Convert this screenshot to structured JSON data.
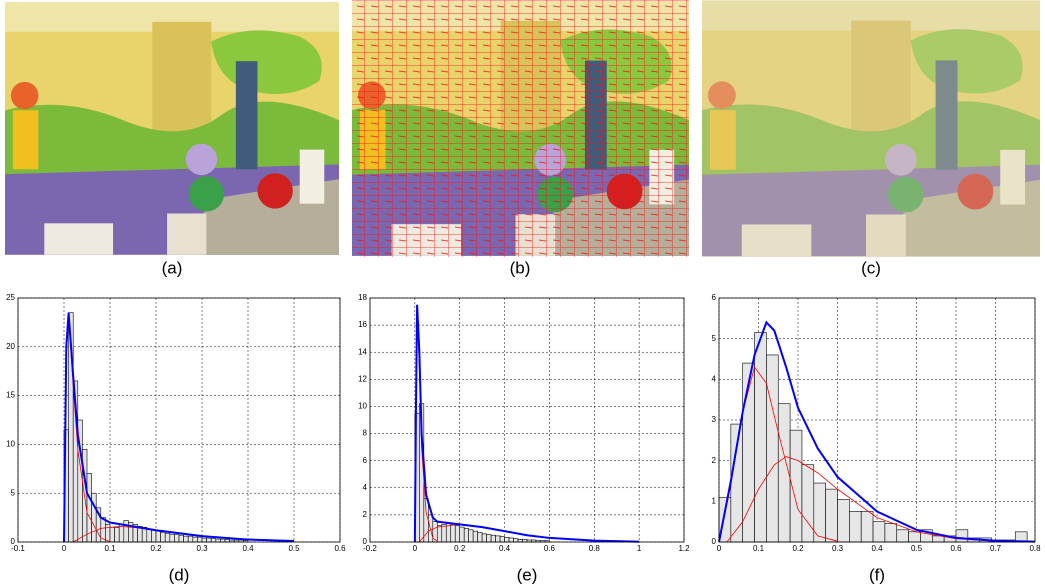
{
  "images": [
    {
      "caption": "(a)"
    },
    {
      "caption": "(b)"
    },
    {
      "caption": "(c)"
    }
  ],
  "chart_data": [
    {
      "type": "histogram",
      "caption": "(d)",
      "color": "#e6e6e6",
      "grid": true,
      "xlim": [
        -0.1,
        0.6
      ],
      "xticks": [
        -0.1,
        0,
        0.1,
        0.2,
        0.3,
        0.4,
        0.5,
        0.6
      ],
      "ylim": [
        0,
        25
      ],
      "yticks": [
        0,
        5,
        10,
        15,
        20,
        25
      ],
      "bins": [
        0,
        0.01,
        0.02,
        0.03,
        0.04,
        0.05,
        0.06,
        0.07,
        0.08,
        0.09,
        0.1,
        0.11,
        0.12,
        0.13,
        0.14,
        0.15,
        0.16,
        0.17,
        0.18,
        0.19,
        0.2,
        0.21,
        0.22,
        0.23,
        0.24,
        0.25,
        0.26,
        0.27,
        0.28,
        0.29,
        0.3,
        0.31,
        0.32,
        0.33,
        0.34,
        0.35,
        0.36,
        0.37,
        0.38,
        0.39,
        0.4
      ],
      "values": [
        11.5,
        23.5,
        16.5,
        12.5,
        9.5,
        7,
        5,
        3.5,
        2.5,
        1.8,
        1.5,
        1.5,
        1.8,
        2.2,
        2,
        1.8,
        1.6,
        1.5,
        1.3,
        1.2,
        1.1,
        1,
        0.9,
        0.8,
        0.8,
        0.7,
        0.6,
        0.6,
        0.5,
        0.5,
        0.4,
        0.4,
        0.35,
        0.3,
        0.3,
        0.25,
        0.2,
        0.2,
        0.2,
        0.15
      ],
      "curves": [
        {
          "color": "#ff0000",
          "x": [
            0,
            0.005,
            0.01,
            0.02,
            0.03,
            0.05,
            0.08,
            0.1
          ],
          "values": [
            0,
            19,
            23,
            16,
            9.5,
            3,
            0.4,
            0.05
          ]
        },
        {
          "color": "#ff0000",
          "x": [
            0.02,
            0.05,
            0.08,
            0.12,
            0.15,
            0.2,
            0.3,
            0.4,
            0.5
          ],
          "values": [
            0,
            0.8,
            1.4,
            1.6,
            1.5,
            1.2,
            0.6,
            0.25,
            0.1
          ]
        },
        {
          "color": "#0000ff",
          "x": [
            0,
            0.005,
            0.01,
            0.02,
            0.03,
            0.05,
            0.08,
            0.1,
            0.15,
            0.2,
            0.3,
            0.4,
            0.5
          ],
          "values": [
            0,
            20,
            23.5,
            17,
            11,
            5,
            2.5,
            2,
            1.6,
            1.2,
            0.6,
            0.25,
            0.1
          ]
        }
      ]
    },
    {
      "type": "histogram",
      "caption": "(e)",
      "color": "#e6e6e6",
      "grid": true,
      "xlim": [
        -0.2,
        1.2
      ],
      "xticks": [
        -0.2,
        0,
        0.2,
        0.4,
        0.6,
        0.8,
        1,
        1.2
      ],
      "ylim": [
        0,
        18
      ],
      "yticks": [
        0,
        2,
        4,
        6,
        8,
        10,
        12,
        14,
        16,
        18
      ],
      "bins": [
        0,
        0.02,
        0.04,
        0.06,
        0.08,
        0.1,
        0.12,
        0.14,
        0.16,
        0.18,
        0.2,
        0.22,
        0.24,
        0.26,
        0.28,
        0.3,
        0.32,
        0.34,
        0.36,
        0.38,
        0.4,
        0.42,
        0.44,
        0.46,
        0.48,
        0.5,
        0.52,
        0.54,
        0.56,
        0.58,
        0.6
      ],
      "values": [
        9.5,
        10.2,
        3.2,
        2,
        1.5,
        1.2,
        1.3,
        1.4,
        1.3,
        1.2,
        1.1,
        1,
        0.9,
        0.8,
        0.7,
        0.6,
        0.55,
        0.5,
        0.45,
        0.4,
        0.35,
        0.3,
        0.25,
        0.2,
        0.2,
        0.15,
        0.15,
        0.1,
        0.1,
        0.1
      ],
      "curves": [
        {
          "color": "#ff0000",
          "x": [
            0,
            0.005,
            0.01,
            0.02,
            0.03,
            0.05,
            0.08,
            0.1
          ],
          "values": [
            0,
            9.8,
            17,
            13,
            7,
            2.2,
            0.3,
            0.05
          ]
        },
        {
          "color": "#ff0000",
          "x": [
            0.02,
            0.06,
            0.1,
            0.2,
            0.3,
            0.4,
            0.5,
            0.6,
            0.8,
            1
          ],
          "values": [
            0,
            0.8,
            1.1,
            1.3,
            1.1,
            0.8,
            0.5,
            0.3,
            0.1,
            0.02
          ]
        },
        {
          "color": "#0000ff",
          "x": [
            0,
            0.005,
            0.01,
            0.02,
            0.03,
            0.05,
            0.08,
            0.1,
            0.15,
            0.2,
            0.3,
            0.4,
            0.5,
            0.6,
            0.8,
            1
          ],
          "values": [
            0,
            10,
            17.5,
            14,
            8,
            3.5,
            1.8,
            1.5,
            1.4,
            1.3,
            1.1,
            0.8,
            0.5,
            0.3,
            0.1,
            0.02
          ]
        }
      ]
    },
    {
      "type": "histogram",
      "caption": "(f)",
      "color": "#e6e6e6",
      "grid": true,
      "xlim": [
        0,
        0.8
      ],
      "xticks": [
        0,
        0.1,
        0.2,
        0.3,
        0.4,
        0.5,
        0.6,
        0.7,
        0.8
      ],
      "ylim": [
        0,
        6
      ],
      "yticks": [
        0,
        1,
        2,
        3,
        4,
        5,
        6
      ],
      "bins": [
        0,
        0.03,
        0.06,
        0.09,
        0.12,
        0.15,
        0.18,
        0.21,
        0.24,
        0.27,
        0.3,
        0.33,
        0.36,
        0.39,
        0.42,
        0.45,
        0.48,
        0.51,
        0.54,
        0.57,
        0.6,
        0.63,
        0.66,
        0.69,
        0.72,
        0.75,
        0.78
      ],
      "values": [
        1.1,
        2.9,
        4.4,
        5.15,
        4.6,
        3.4,
        2.75,
        1.9,
        1.45,
        1.3,
        1.05,
        0.75,
        0.75,
        0.5,
        0.45,
        0.3,
        0.25,
        0.3,
        0.15,
        0.15,
        0.3,
        0.1,
        0.1,
        0.05,
        0.05,
        0.25
      ],
      "curves": [
        {
          "color": "#ff0000",
          "x": [
            0,
            0.03,
            0.06,
            0.09,
            0.12,
            0.15,
            0.2,
            0.25,
            0.3
          ],
          "values": [
            0,
            1.4,
            3.2,
            4.3,
            3.9,
            2.7,
            0.8,
            0.15,
            0.02
          ]
        },
        {
          "color": "#ff0000",
          "x": [
            0.02,
            0.06,
            0.1,
            0.14,
            0.17,
            0.2,
            0.25,
            0.3,
            0.4,
            0.5,
            0.6,
            0.7
          ],
          "values": [
            0,
            0.5,
            1.3,
            1.9,
            2.1,
            2,
            1.7,
            1.3,
            0.6,
            0.25,
            0.08,
            0.02
          ]
        },
        {
          "color": "#0000ff",
          "x": [
            0,
            0.03,
            0.06,
            0.09,
            0.12,
            0.14,
            0.17,
            0.2,
            0.25,
            0.3,
            0.4,
            0.5,
            0.6,
            0.7,
            0.8
          ],
          "values": [
            0,
            1.5,
            3.2,
            4.6,
            5.4,
            5.2,
            4.3,
            3.3,
            2.3,
            1.6,
            0.75,
            0.3,
            0.1,
            0.03,
            0.01
          ]
        }
      ]
    }
  ]
}
